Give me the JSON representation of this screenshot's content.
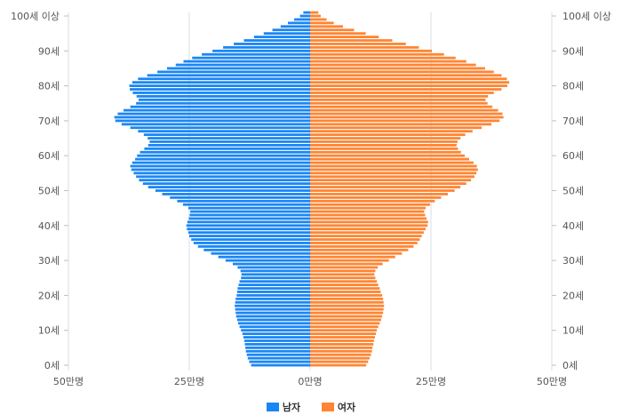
{
  "chart_data": {
    "type": "bar",
    "orientation": "horizontal-pyramid",
    "x_ticks": [
      "50만명",
      "25만명",
      "0만명",
      "25만명",
      "50만명"
    ],
    "x_range": [
      -50,
      50
    ],
    "y_ticks": [
      "0세",
      "10세",
      "20세",
      "30세",
      "40세",
      "50세",
      "60세",
      "70세",
      "80세",
      "90세",
      "100세 이상"
    ],
    "y_tick_values": [
      0,
      10,
      20,
      30,
      40,
      50,
      60,
      70,
      80,
      90,
      100
    ],
    "series": [
      {
        "name": "남자",
        "color": "#1a86f5",
        "values": [
          12.2,
          12.6,
          12.9,
          13.1,
          13.3,
          13.4,
          13.5,
          13.6,
          13.8,
          14.0,
          14.3,
          14.6,
          14.9,
          15.1,
          15.3,
          15.4,
          15.5,
          15.6,
          15.5,
          15.4,
          15.2,
          15.1,
          15.0,
          14.8,
          14.6,
          14.3,
          14.2,
          14.4,
          15.0,
          16.0,
          17.5,
          19.0,
          20.5,
          22.0,
          23.2,
          24.1,
          24.6,
          25.0,
          25.2,
          25.5,
          25.6,
          25.4,
          25.1,
          24.9,
          24.8,
          25.2,
          26.3,
          27.5,
          29.0,
          30.6,
          32.0,
          33.5,
          34.6,
          35.4,
          36.0,
          36.5,
          37.0,
          37.2,
          36.8,
          36.2,
          35.8,
          35.2,
          34.3,
          33.5,
          33.2,
          33.6,
          34.4,
          35.6,
          37.2,
          39.0,
          40.3,
          40.5,
          39.8,
          38.6,
          37.2,
          36.0,
          35.5,
          35.9,
          36.7,
          37.3,
          37.4,
          36.8,
          35.6,
          33.7,
          31.6,
          29.6,
          27.8,
          26.2,
          24.4,
          22.4,
          20.2,
          18.0,
          15.8,
          13.7,
          11.6,
          9.6,
          7.8,
          6.1,
          4.6,
          3.3,
          2.1,
          1.4
        ]
      },
      {
        "name": "여자",
        "color": "#ff8533",
        "values": [
          11.6,
          12.0,
          12.3,
          12.6,
          12.8,
          12.9,
          13.1,
          13.2,
          13.4,
          13.6,
          13.8,
          14.1,
          14.4,
          14.7,
          14.9,
          15.1,
          15.2,
          15.3,
          15.2,
          15.1,
          14.9,
          14.6,
          14.4,
          14.1,
          13.8,
          13.5,
          13.3,
          13.5,
          14.0,
          15.0,
          16.3,
          17.6,
          19.0,
          20.3,
          21.4,
          22.2,
          22.7,
          23.1,
          23.5,
          23.9,
          24.3,
          24.4,
          24.1,
          23.8,
          23.6,
          23.9,
          24.8,
          25.8,
          27.1,
          28.5,
          29.9,
          31.1,
          32.3,
          33.3,
          34.0,
          34.4,
          34.7,
          34.5,
          33.8,
          32.9,
          32.0,
          31.2,
          30.6,
          30.3,
          30.5,
          31.1,
          32.1,
          33.6,
          35.5,
          37.5,
          39.2,
          40.0,
          39.8,
          38.9,
          37.7,
          36.7,
          36.3,
          36.8,
          38.0,
          39.6,
          40.8,
          41.2,
          40.7,
          39.6,
          38.0,
          36.2,
          34.3,
          32.3,
          30.1,
          27.7,
          25.2,
          22.5,
          19.8,
          17.0,
          14.2,
          11.5,
          9.1,
          6.8,
          4.9,
          3.4,
          2.2,
          1.7
        ]
      }
    ],
    "grid": true,
    "legend_position": "bottom-center"
  },
  "legend": {
    "male": "남자",
    "female": "여자"
  }
}
